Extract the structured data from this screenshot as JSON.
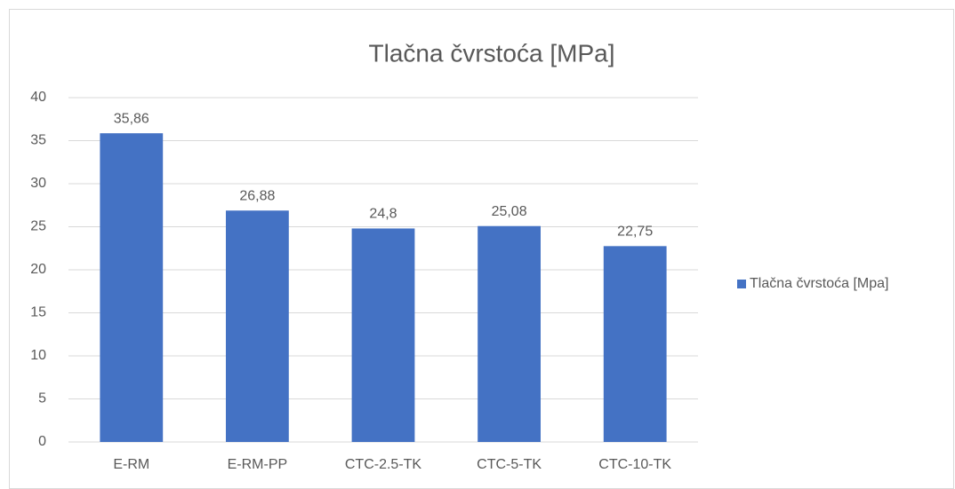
{
  "chart_data": {
    "type": "bar",
    "title": "Tlačna čvrstoća [MPa]",
    "categories": [
      "E-RM",
      "E-RM-PP",
      "CTC-2.5-TK",
      "CTC-5-TK",
      "CTC-10-TK"
    ],
    "series": [
      {
        "name": "Tlačna čvrstoća [Mpa]",
        "color": "#4472c4",
        "values": [
          35.86,
          26.88,
          24.8,
          25.08,
          22.75
        ],
        "value_labels": [
          "35,86",
          "26,88",
          "24,8",
          "25,08",
          "22,75"
        ]
      }
    ],
    "ylim": [
      0,
      40
    ],
    "yticks": [
      0,
      5,
      10,
      15,
      20,
      25,
      30,
      35,
      40
    ],
    "grid": true,
    "legend": "right"
  }
}
